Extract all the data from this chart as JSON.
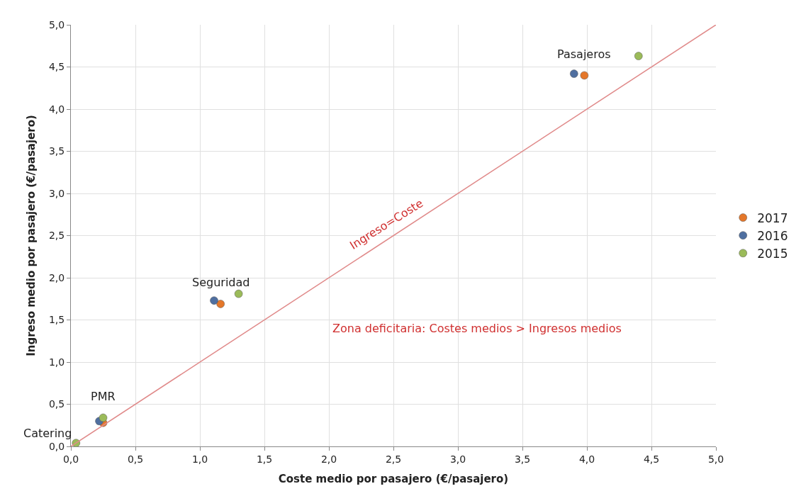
{
  "chart_data": {
    "type": "scatter",
    "xlabel": "Coste medio por pasajero (€/pasajero)",
    "ylabel": "Ingreso medio por pasajero (€/pasajero)",
    "xlim": [
      0,
      5
    ],
    "ylim": [
      0,
      5
    ],
    "xticks": [
      {
        "value": 0,
        "label": "0,0"
      },
      {
        "value": 0.5,
        "label": "0,5"
      },
      {
        "value": 1,
        "label": "1,0"
      },
      {
        "value": 1.5,
        "label": "1,5"
      },
      {
        "value": 2,
        "label": "2,0"
      },
      {
        "value": 2.5,
        "label": "2,5"
      },
      {
        "value": 3,
        "label": "3,0"
      },
      {
        "value": 3.5,
        "label": "3,5"
      },
      {
        "value": 4,
        "label": "4,0"
      },
      {
        "value": 4.5,
        "label": "4,5"
      },
      {
        "value": 5,
        "label": "5,0"
      }
    ],
    "yticks": [
      {
        "value": 0,
        "label": "0,0"
      },
      {
        "value": 0.5,
        "label": "0,5"
      },
      {
        "value": 1,
        "label": "1,0"
      },
      {
        "value": 1.5,
        "label": "1,5"
      },
      {
        "value": 2,
        "label": "2,0"
      },
      {
        "value": 2.5,
        "label": "2,5"
      },
      {
        "value": 3,
        "label": "3,0"
      },
      {
        "value": 3.5,
        "label": "3,5"
      },
      {
        "value": 4,
        "label": "4,0"
      },
      {
        "value": 4.5,
        "label": "4,5"
      },
      {
        "value": 5,
        "label": "5,0"
      }
    ],
    "grid": true,
    "legend": "right",
    "marker": "circle",
    "series": [
      {
        "name": "2017",
        "color": "#e4772a",
        "x": [
          3.98,
          1.16,
          0.25,
          null
        ],
        "values": [
          4.4,
          1.69,
          0.28,
          null
        ]
      },
      {
        "name": "2016",
        "color": "#4f6fa0",
        "x": [
          3.9,
          1.11,
          0.22,
          null
        ],
        "values": [
          4.42,
          1.73,
          0.3,
          null
        ]
      },
      {
        "name": "2015",
        "color": "#9bbb59",
        "x": [
          4.4,
          1.3,
          0.25,
          0.04
        ],
        "values": [
          4.63,
          1.81,
          0.34,
          0.04
        ]
      },
      {
        "type": "line",
        "marker": "none",
        "color": "#e08a8a",
        "x": [
          0,
          5
        ],
        "values": [
          0,
          5
        ]
      }
    ],
    "annotations": [
      {
        "text": "Pasajeros",
        "x": 3.98,
        "y": 4.4
      },
      {
        "text": "Seguridad",
        "x": 1.16,
        "y": 1.69
      },
      {
        "text": "PMR",
        "x": 0.25,
        "y": 0.34
      },
      {
        "text": "Catering",
        "x": 0.04,
        "y": 0.04
      },
      {
        "text": "Ingreso=Coste",
        "x": 2.5,
        "y": 2.5
      },
      "Zona deficitaria: Costes medios > Ingresos medios"
    ]
  }
}
